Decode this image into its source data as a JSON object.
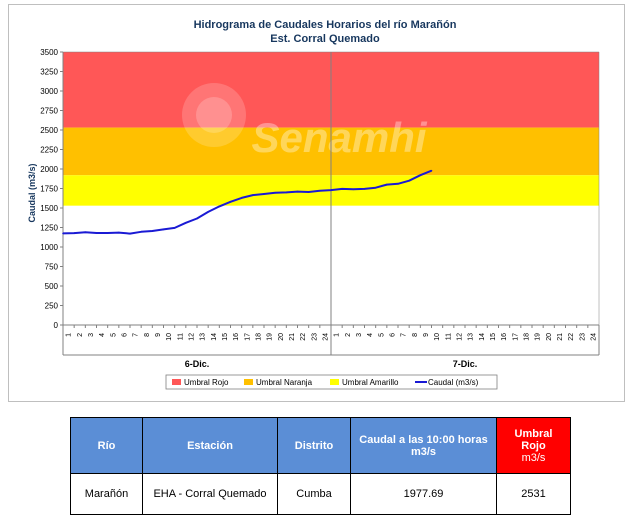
{
  "chart_data": {
    "type": "line",
    "title": "Hidrograma de Caudales Horarios del río Marañón",
    "subtitle": "Est. Corral Quemado",
    "ylabel": "Caudal  (m3/s)",
    "ylim": [
      0,
      3500
    ],
    "yticks": [
      0,
      250,
      500,
      750,
      1000,
      1250,
      1500,
      1750,
      2000,
      2250,
      2500,
      2750,
      3000,
      3250,
      3500
    ],
    "xtick_labels": [
      "1",
      "2",
      "3",
      "4",
      "5",
      "6",
      "7",
      "8",
      "9",
      "10",
      "11",
      "12",
      "13",
      "14",
      "15",
      "16",
      "17",
      "18",
      "19",
      "20",
      "21",
      "22",
      "23",
      "24",
      "1",
      "2",
      "3",
      "4",
      "5",
      "6",
      "7",
      "8",
      "9",
      "10",
      "11",
      "12",
      "13",
      "14",
      "15",
      "16",
      "17",
      "18",
      "19",
      "20",
      "21",
      "22",
      "23",
      "24"
    ],
    "groups": [
      "6-Dic.",
      "7-Dic."
    ],
    "bands": [
      {
        "name": "Umbral Rojo",
        "from": 2531,
        "to": 3500,
        "color": "#ff5757"
      },
      {
        "name": "Umbral Naranja",
        "from": 1920,
        "to": 2531,
        "color": "#ffc000"
      },
      {
        "name": "Umbral Amarillo",
        "from": 1530,
        "to": 1920,
        "color": "#ffff00"
      }
    ],
    "series": [
      {
        "name": "Caudal (m3/s)",
        "color": "#1a1ad4",
        "values": [
          1175,
          1178,
          1190,
          1180,
          1180,
          1185,
          1172,
          1195,
          1205,
          1225,
          1245,
          1310,
          1365,
          1450,
          1520,
          1580,
          1630,
          1665,
          1680,
          1695,
          1700,
          1710,
          1705,
          1720,
          1730,
          1745,
          1740,
          1745,
          1760,
          1800,
          1810,
          1850,
          1920,
          1977.69
        ]
      }
    ],
    "legend": [
      "Umbral Rojo",
      "Umbral Naranja",
      "Umbral Amarillo",
      "Caudal (m3/s)"
    ],
    "legend_position": "bottom",
    "grid": false,
    "watermark": "Senamhi"
  },
  "table": {
    "headers": {
      "rio": "Río",
      "estacion": "Estación",
      "distrito": "Distrito",
      "caudal": "Caudal a las 10:00 horas",
      "caudal_unit": "m3/s",
      "umbral": "Umbral Rojo",
      "umbral_unit": "m3/s"
    },
    "row": {
      "rio": "Marañón",
      "estacion": "EHA - Corral Quemado",
      "distrito": "Cumba",
      "caudal": "1977.69",
      "umbral": "2531"
    },
    "colors": {
      "header": "#5b8ed6",
      "umbral_header": "#ff0000"
    }
  }
}
